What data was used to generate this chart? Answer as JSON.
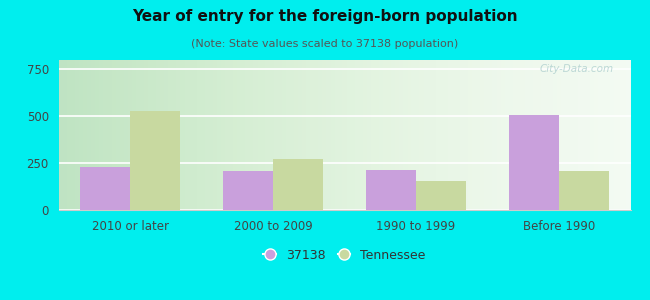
{
  "title": "Year of entry for the foreign-born population",
  "subtitle": "(Note: State values scaled to 37138 population)",
  "categories": [
    "2010 or later",
    "2000 to 2009",
    "1990 to 1999",
    "Before 1990"
  ],
  "values_37138": [
    230,
    210,
    215,
    505
  ],
  "values_tennessee": [
    530,
    270,
    155,
    210
  ],
  "color_37138": "#c9a0dc",
  "color_tennessee": "#c8d9a0",
  "background_outer": "#00eeee",
  "ylim": [
    0,
    800
  ],
  "yticks": [
    0,
    250,
    500,
    750
  ],
  "bar_width": 0.35,
  "legend_label_37138": "37138",
  "legend_label_tennessee": "Tennessee",
  "watermark": "City-Data.com"
}
